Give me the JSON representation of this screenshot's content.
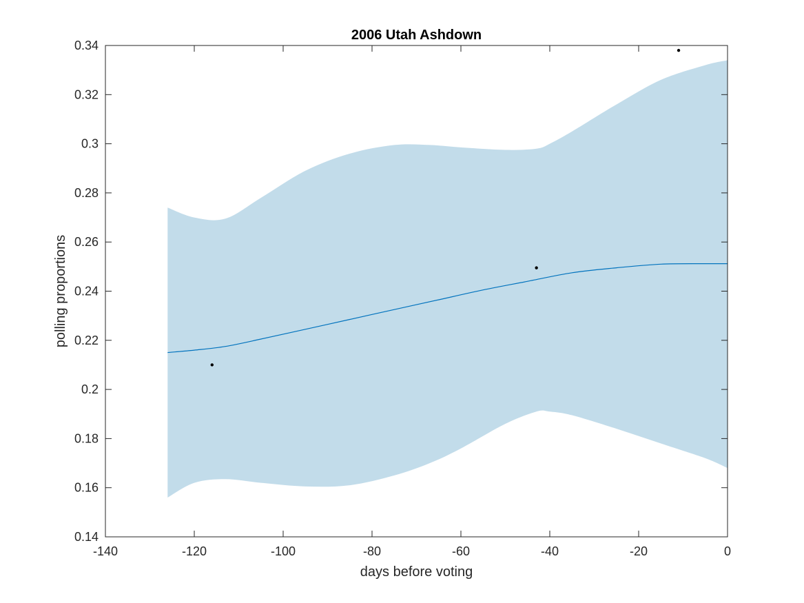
{
  "chart_data": {
    "type": "line",
    "title": "2006 Utah Ashdown",
    "xlabel": "days before voting",
    "ylabel": "polling proportions",
    "xlim": [
      -140,
      0
    ],
    "ylim": [
      0.14,
      0.34
    ],
    "xticks": [
      -140,
      -120,
      -100,
      -80,
      -60,
      -40,
      -20,
      0
    ],
    "yticks": [
      0.14,
      0.16,
      0.18,
      0.2,
      0.22,
      0.24,
      0.26,
      0.28,
      0.3,
      0.32,
      0.34
    ],
    "xtick_labels": [
      "-140",
      "-120",
      "-100",
      "-80",
      "-60",
      "-40",
      "-20",
      "0"
    ],
    "ytick_labels": [
      "0.14",
      "0.16",
      "0.18",
      "0.2",
      "0.22",
      "0.24",
      "0.26",
      "0.28",
      "0.3",
      "0.32",
      "0.34"
    ],
    "grid": false,
    "band": {
      "x": [
        -126,
        -120,
        -113,
        -105,
        -95,
        -85,
        -75,
        -67,
        -60,
        -50,
        -43,
        -40,
        -35,
        -25,
        -15,
        -5,
        0
      ],
      "upper": [
        0.274,
        0.27,
        0.2695,
        0.278,
        0.289,
        0.296,
        0.2995,
        0.2995,
        0.2985,
        0.2975,
        0.298,
        0.3,
        0.305,
        0.316,
        0.326,
        0.332,
        0.334
      ],
      "lower": [
        0.156,
        0.162,
        0.1635,
        0.162,
        0.1605,
        0.161,
        0.165,
        0.17,
        0.176,
        0.186,
        0.191,
        0.191,
        0.1895,
        0.184,
        0.178,
        0.172,
        0.168
      ],
      "color": "#c2dcea"
    },
    "series": [
      {
        "x": [
          -126,
          -120,
          -113,
          -105,
          -95,
          -85,
          -75,
          -65,
          -55,
          -45,
          -35,
          -25,
          -15,
          -5,
          0
        ],
        "values": [
          0.215,
          0.216,
          0.2175,
          0.2205,
          0.2245,
          0.2285,
          0.2325,
          0.2365,
          0.2405,
          0.244,
          0.2475,
          0.2495,
          0.251,
          0.2512,
          0.2512
        ],
        "color": "#0072bd"
      }
    ],
    "points": {
      "x": [
        -116,
        -43,
        -11
      ],
      "y": [
        0.21,
        0.2495,
        0.338
      ],
      "color": "#000000"
    }
  }
}
